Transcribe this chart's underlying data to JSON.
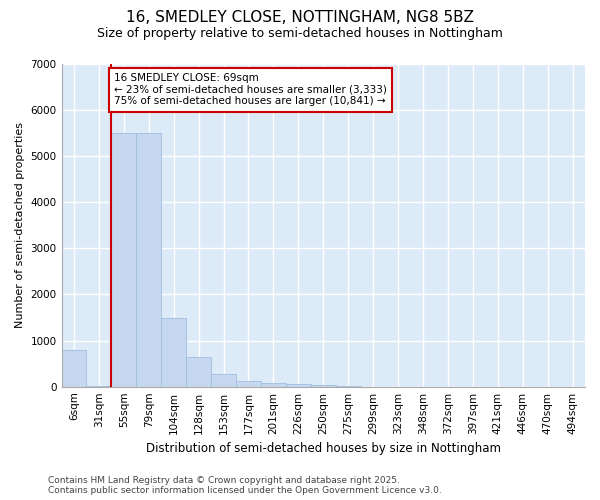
{
  "title": "16, SMEDLEY CLOSE, NOTTINGHAM, NG8 5BZ",
  "subtitle": "Size of property relative to semi-detached houses in Nottingham",
  "xlabel": "Distribution of semi-detached houses by size in Nottingham",
  "ylabel": "Number of semi-detached properties",
  "categories": [
    "6sqm",
    "31sqm",
    "55sqm",
    "79sqm",
    "104sqm",
    "128sqm",
    "153sqm",
    "177sqm",
    "201sqm",
    "226sqm",
    "250sqm",
    "275sqm",
    "299sqm",
    "323sqm",
    "348sqm",
    "372sqm",
    "397sqm",
    "421sqm",
    "446sqm",
    "470sqm",
    "494sqm"
  ],
  "bar_values": [
    800,
    5,
    5500,
    5500,
    1500,
    650,
    280,
    130,
    80,
    50,
    30,
    5,
    3,
    2,
    2,
    1,
    1,
    1,
    1,
    1,
    1
  ],
  "bar_color": "#c5d8f0",
  "bar_edge_color": "#a0bede",
  "background_color": "#ddeaf8",
  "grid_color": "#ffffff",
  "figure_bg": "#ffffff",
  "ylim": [
    0,
    7000
  ],
  "yticks": [
    0,
    1000,
    2000,
    3000,
    4000,
    5000,
    6000,
    7000
  ],
  "property_label": "16 SMEDLEY CLOSE: 69sqm",
  "pct_smaller": 23,
  "count_smaller": 3333,
  "pct_larger": 75,
  "count_larger": 10841,
  "red_line_color": "#cc0000",
  "annotation_box_color": "#cc0000",
  "footer_line1": "Contains HM Land Registry data © Crown copyright and database right 2025.",
  "footer_line2": "Contains public sector information licensed under the Open Government Licence v3.0.",
  "title_fontsize": 11,
  "subtitle_fontsize": 9,
  "axis_fontsize": 8,
  "tick_fontsize": 7.5,
  "footer_fontsize": 6.5,
  "ann_fontsize": 7.5
}
